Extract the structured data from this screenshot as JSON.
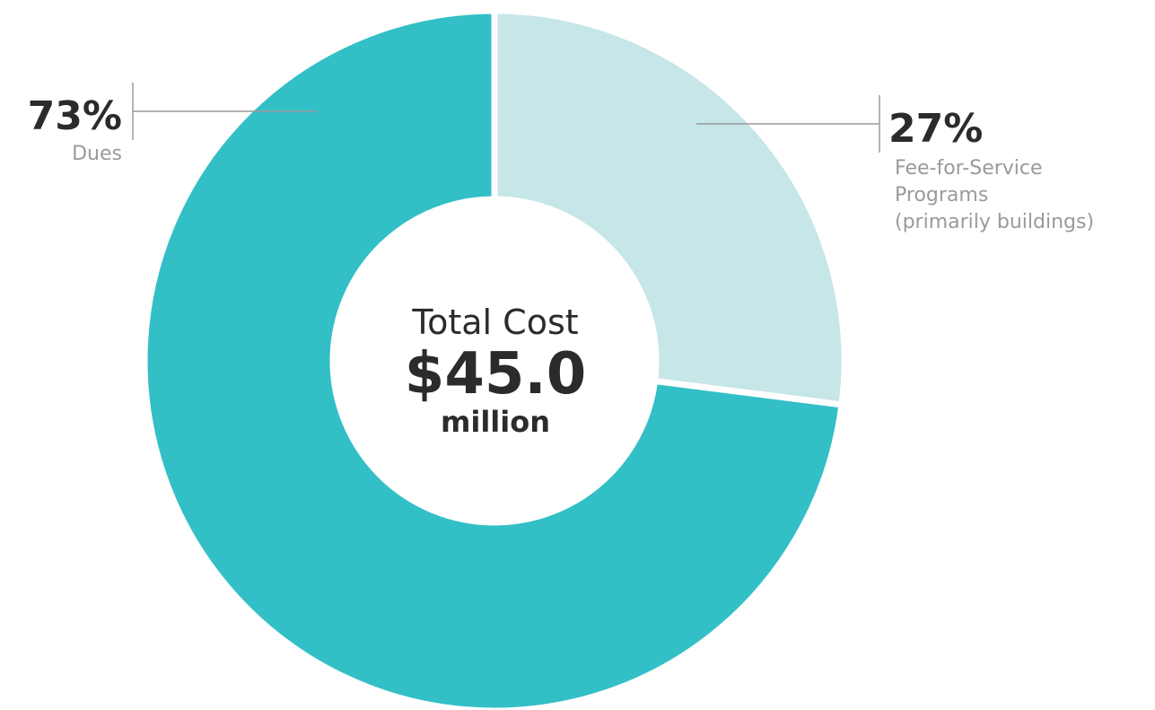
{
  "chart_data": {
    "type": "pie",
    "donut": true,
    "categories": [
      "Fee-for-Service Programs (primarily buildings)",
      "Dues"
    ],
    "values": [
      27,
      73
    ],
    "unit": "%",
    "colors": [
      "#c6e6e8",
      "#33bfc6"
    ],
    "center": {
      "line1": "Total Cost",
      "line2": "$45.0",
      "line3": "million"
    },
    "labels": [
      {
        "pct": "27%",
        "lines": [
          "Fee-for-Service",
          "Programs",
          "(primarily buildings)"
        ]
      },
      {
        "pct": "73%",
        "lines": [
          "Dues"
        ]
      }
    ]
  }
}
